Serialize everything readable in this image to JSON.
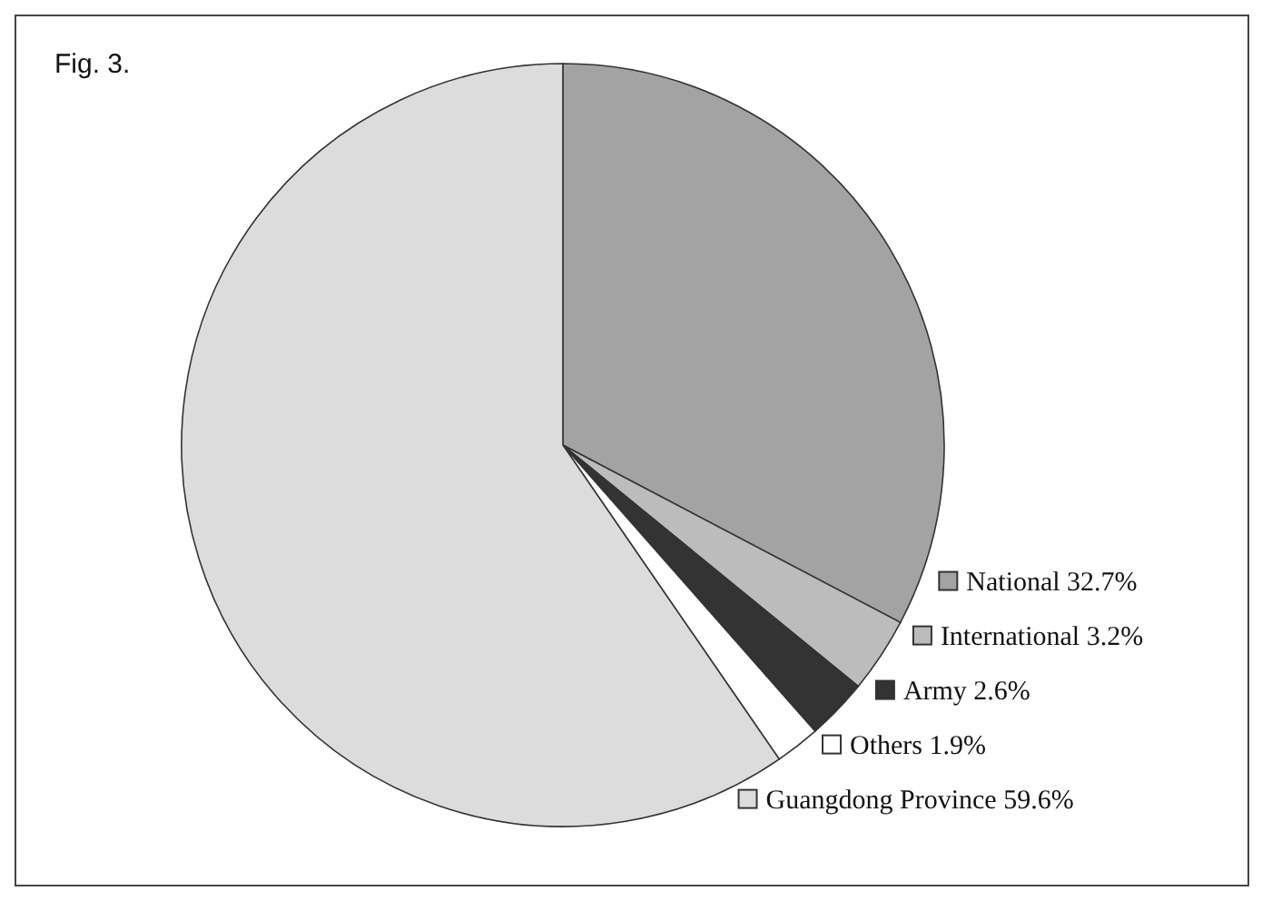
{
  "chart_data": {
    "type": "pie",
    "title": "Fig. 3.",
    "categories": [
      "National",
      "International",
      "Army",
      "Others",
      "Guangdong Province"
    ],
    "values": [
      32.7,
      3.2,
      2.6,
      1.9,
      59.6
    ],
    "colors": [
      "#a3a3a3",
      "#bcbcbc",
      "#333333",
      "#ffffff",
      "#dcdcdc"
    ],
    "value_labels": [
      "32.7%",
      "3.2%",
      "2.6%",
      "1.9%",
      "59.6%"
    ],
    "legend": "right"
  }
}
